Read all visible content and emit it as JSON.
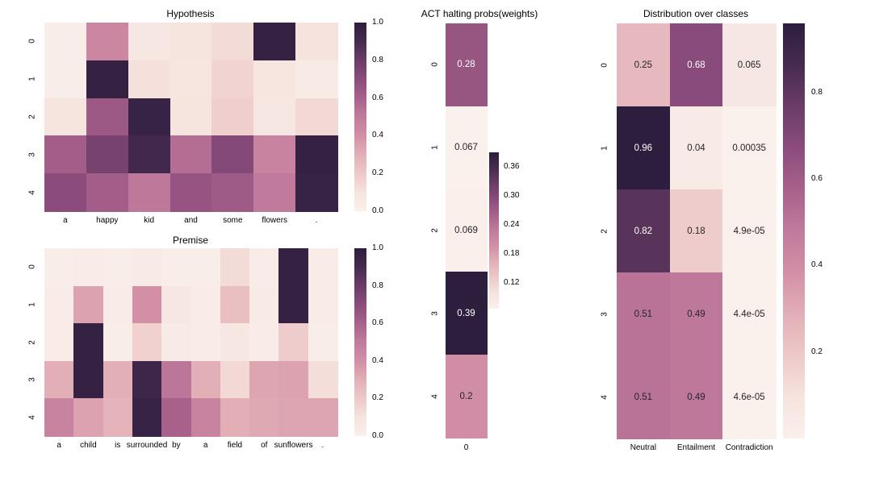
{
  "figure": {
    "background": "#ffffff",
    "annotation_text_light": "#ffffff",
    "annotation_text_dark": "#262626"
  },
  "palette": {
    "name": "light-pink-to-dark-purple",
    "stops": [
      {
        "v": 0.0,
        "color": "#faf0ec"
      },
      {
        "v": 0.1,
        "color": "#f6e3dd"
      },
      {
        "v": 0.2,
        "color": "#edc9c9"
      },
      {
        "v": 0.3,
        "color": "#e2afb6"
      },
      {
        "v": 0.4,
        "color": "#d28fa6"
      },
      {
        "v": 0.5,
        "color": "#c07b9c"
      },
      {
        "v": 0.6,
        "color": "#a8618b"
      },
      {
        "v": 0.7,
        "color": "#8b4c7c"
      },
      {
        "v": 0.8,
        "color": "#6b3c67"
      },
      {
        "v": 0.9,
        "color": "#472b4f"
      },
      {
        "v": 1.0,
        "color": "#2d1e3e"
      }
    ]
  },
  "chart_data": [
    {
      "id": "hypothesis",
      "type": "heatmap",
      "title": "Hypothesis",
      "rows": [
        "0",
        "1",
        "2",
        "3",
        "4"
      ],
      "columns": [
        "a",
        "happy",
        "kid",
        "and",
        "some",
        "flowers",
        "."
      ],
      "values": [
        [
          0.02,
          0.44,
          0.07,
          0.09,
          0.13,
          0.97,
          0.1
        ],
        [
          0.02,
          0.97,
          0.11,
          0.08,
          0.16,
          0.08,
          0.05
        ],
        [
          0.09,
          0.64,
          0.96,
          0.09,
          0.18,
          0.07,
          0.14
        ],
        [
          0.62,
          0.76,
          0.92,
          0.55,
          0.72,
          0.46,
          0.97
        ],
        [
          0.7,
          0.62,
          0.51,
          0.66,
          0.63,
          0.5,
          0.96
        ]
      ],
      "vmin": 0.0,
      "vmax": 1.0,
      "annotations": null,
      "colorbar": {
        "top_value": 1.0,
        "bottom_value": 0.0,
        "ticks": [
          {
            "label": "1.0",
            "value": 1.0
          },
          {
            "label": "0.8",
            "value": 0.8
          },
          {
            "label": "0.6",
            "value": 0.6
          },
          {
            "label": "0.4",
            "value": 0.4
          },
          {
            "label": "0.2",
            "value": 0.2
          },
          {
            "label": "0.0",
            "value": 0.0
          }
        ]
      }
    },
    {
      "id": "premise",
      "type": "heatmap",
      "title": "Premise",
      "rows": [
        "0",
        "1",
        "2",
        "3",
        "4"
      ],
      "columns": [
        "a",
        "child",
        "is",
        "surrounded",
        "by",
        "a",
        "field",
        "of",
        "sunflowers",
        "."
      ],
      "values": [
        [
          0.02,
          0.03,
          0.02,
          0.05,
          0.02,
          0.02,
          0.13,
          0.03,
          0.97,
          0.03
        ],
        [
          0.03,
          0.34,
          0.03,
          0.4,
          0.07,
          0.03,
          0.24,
          0.04,
          0.97,
          0.03
        ],
        [
          0.03,
          0.97,
          0.02,
          0.17,
          0.04,
          0.03,
          0.07,
          0.03,
          0.19,
          0.02
        ],
        [
          0.3,
          0.97,
          0.3,
          0.94,
          0.52,
          0.3,
          0.14,
          0.33,
          0.34,
          0.12
        ],
        [
          0.46,
          0.34,
          0.28,
          0.96,
          0.6,
          0.46,
          0.3,
          0.32,
          0.33,
          0.33
        ]
      ],
      "vmin": 0.0,
      "vmax": 1.0,
      "annotations": null,
      "colorbar": {
        "top_value": 1.0,
        "bottom_value": 0.0,
        "ticks": [
          {
            "label": "1.0",
            "value": 1.0
          },
          {
            "label": "0.8",
            "value": 0.8
          },
          {
            "label": "0.6",
            "value": 0.6
          },
          {
            "label": "0.4",
            "value": 0.4
          },
          {
            "label": "0.2",
            "value": 0.2
          },
          {
            "label": "0.0",
            "value": 0.0
          }
        ]
      }
    },
    {
      "id": "act",
      "type": "heatmap",
      "title": "ACT halting probs(weights)",
      "rows": [
        "0",
        "1",
        "2",
        "3",
        "4"
      ],
      "columns": [
        "0"
      ],
      "values": [
        [
          0.28
        ],
        [
          0.067
        ],
        [
          0.069
        ],
        [
          0.39
        ],
        [
          0.2
        ]
      ],
      "vmin": 0.067,
      "vmax": 0.39,
      "annotations": [
        [
          "0.28"
        ],
        [
          "0.067"
        ],
        [
          "0.069"
        ],
        [
          "0.39"
        ],
        [
          "0.2"
        ]
      ],
      "colorbar": {
        "top_value": 0.39,
        "bottom_value": 0.067,
        "ticks": [
          {
            "label": "0.36",
            "value": 0.36
          },
          {
            "label": "0.30",
            "value": 0.3
          },
          {
            "label": "0.24",
            "value": 0.24
          },
          {
            "label": "0.18",
            "value": 0.18
          },
          {
            "label": "0.12",
            "value": 0.12
          }
        ]
      }
    },
    {
      "id": "dist",
      "type": "heatmap",
      "title": "Distribution over classes",
      "rows": [
        "0",
        "1",
        "2",
        "3",
        "4"
      ],
      "columns": [
        "Neutral",
        "Entailment",
        "Contradiction"
      ],
      "values": [
        [
          0.25,
          0.68,
          0.065
        ],
        [
          0.96,
          0.04,
          0.00035
        ],
        [
          0.82,
          0.18,
          4.9e-05
        ],
        [
          0.51,
          0.49,
          4.4e-05
        ],
        [
          0.51,
          0.49,
          4.6e-05
        ]
      ],
      "vmin": 0.0,
      "vmax": 0.96,
      "annotations": [
        [
          "0.25",
          "0.68",
          "0.065"
        ],
        [
          "0.96",
          "0.04",
          "0.00035"
        ],
        [
          "0.82",
          "0.18",
          "4.9e-05"
        ],
        [
          "0.51",
          "0.49",
          "4.4e-05"
        ],
        [
          "0.51",
          "0.49",
          "4.6e-05"
        ]
      ],
      "colorbar": {
        "top_value": 0.96,
        "bottom_value": 0.0,
        "ticks": [
          {
            "label": "0.8",
            "value": 0.8
          },
          {
            "label": "0.6",
            "value": 0.6
          },
          {
            "label": "0.4",
            "value": 0.4
          },
          {
            "label": "0.2",
            "value": 0.2
          }
        ]
      }
    }
  ]
}
